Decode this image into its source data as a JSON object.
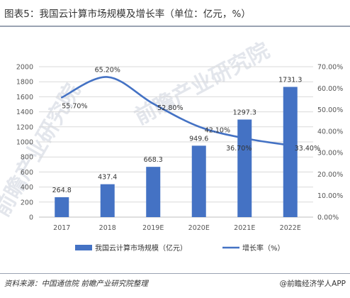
{
  "title": "图表5：我国云计算市场规模及增长率（单位：亿元，%）",
  "source": "资料来源：中国通信院 前瞻产业研究院整理",
  "brand": "@前瞻经济学人APP",
  "watermark": "前瞻产业研究院",
  "colors": {
    "bar": "#4472c4",
    "line": "#4472c4",
    "grid": "#d9d9d9"
  },
  "chart_data": {
    "type": "bar",
    "categories": [
      "2017",
      "2018",
      "2019E",
      "2020E",
      "2021E",
      "2022E"
    ],
    "series": [
      {
        "name": "我国云计算市场规模（亿元）",
        "type": "bar",
        "axis": "left",
        "values": [
          264.8,
          437.4,
          668.3,
          949.6,
          1297.3,
          1731.3
        ],
        "labels": [
          "264.8",
          "437.4",
          "668.3",
          "949.6",
          "1297.3",
          "1731.3"
        ]
      },
      {
        "name": "增长率（%）",
        "type": "line",
        "axis": "right",
        "smooth": true,
        "values": [
          55.7,
          65.2,
          52.8,
          42.1,
          36.7,
          33.4
        ],
        "labels": [
          "55.70%",
          "65.20%",
          "52.80%",
          "42.10%",
          "36.70%",
          "33.40%"
        ]
      }
    ],
    "y_left": {
      "min": 0,
      "max": 2000,
      "step": 200,
      "ticks": [
        "0",
        "200",
        "400",
        "600",
        "800",
        "1000",
        "1200",
        "1400",
        "1600",
        "1800",
        "2000"
      ]
    },
    "y_right": {
      "min": 0,
      "max": 70,
      "step": 10,
      "ticks": [
        "0.00%",
        "10.00%",
        "20.00%",
        "30.00%",
        "40.00%",
        "50.00%",
        "60.00%",
        "70.00%"
      ]
    },
    "grid": true,
    "legend": "bottom"
  }
}
